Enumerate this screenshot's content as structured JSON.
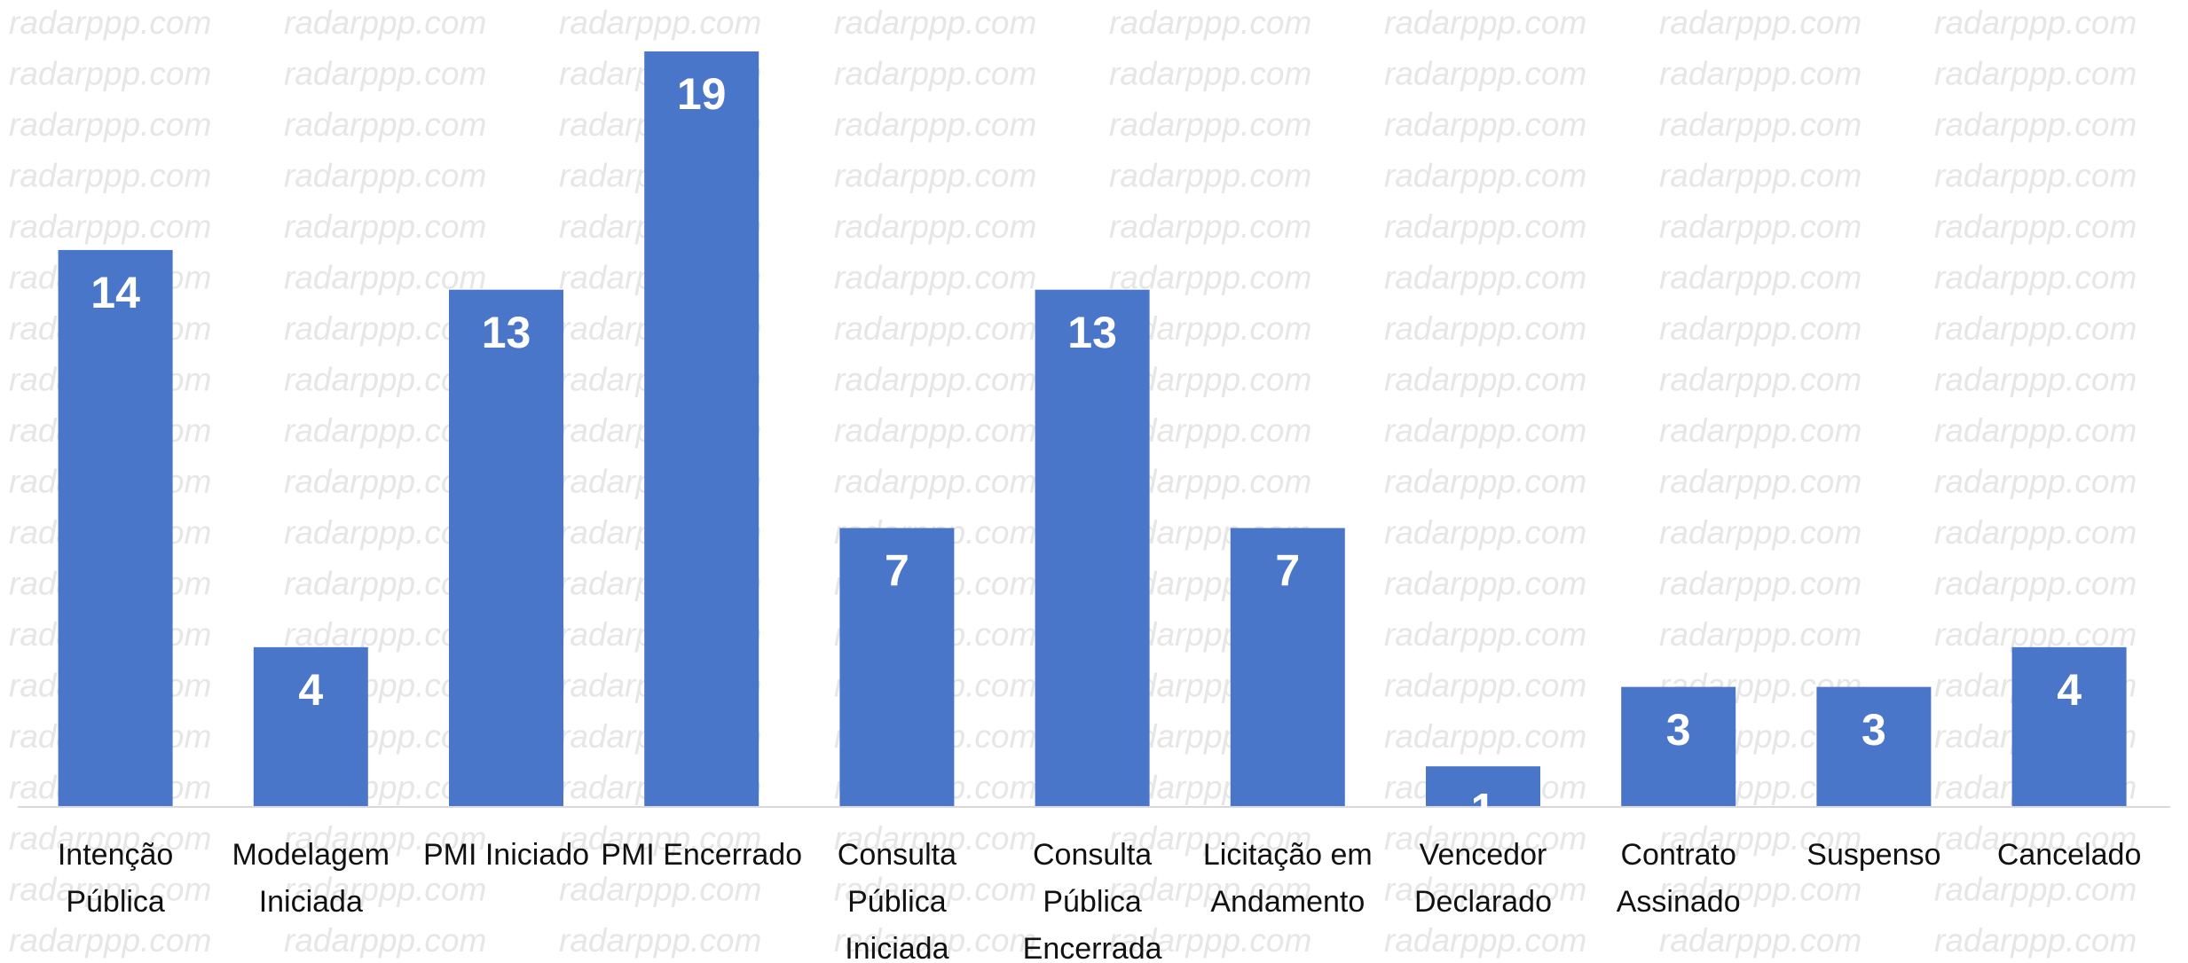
{
  "chart_data": {
    "type": "bar",
    "watermark": "radarppp.com",
    "categories": [
      "Intenção Pública",
      "Modelagem Iniciada",
      "PMI Iniciado",
      "PMI Encerrado",
      "Consulta Pública Iniciada",
      "Consulta Pública Encerrada",
      "Licitação em Andamento",
      "Vencedor Declarado",
      "Contrato Assinado",
      "Suspenso",
      "Cancelado"
    ],
    "values": [
      14,
      4,
      13,
      19,
      7,
      13,
      7,
      1,
      3,
      3,
      4
    ],
    "color": "#4a76c9",
    "ylim": [
      0,
      19
    ]
  }
}
